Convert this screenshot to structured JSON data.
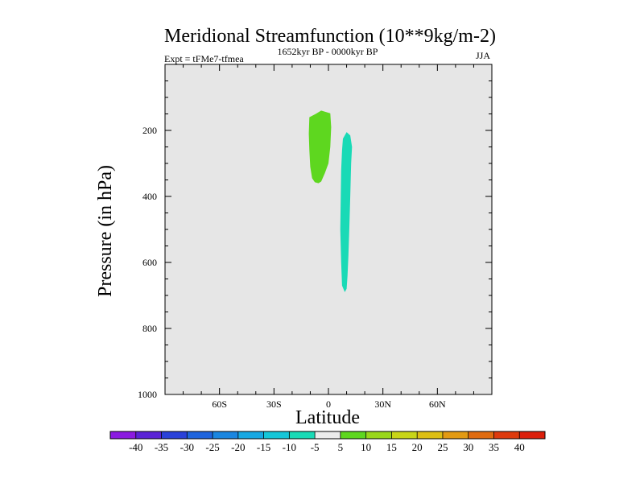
{
  "chart_data": {
    "type": "contour",
    "title": "Meridional Streamfunction (10**9kg/m-2)",
    "left_label": "Expt = tFMe7-tfmea",
    "center_label": "1652kyr BP - 0000kyr BP",
    "right_label": "JJA",
    "xlabel": "Latitude",
    "ylabel": "Pressure (in hPa)",
    "xlim": [
      -90,
      90
    ],
    "ylim": [
      1000,
      0
    ],
    "x_ticks": [
      {
        "value": -60,
        "label": "60S"
      },
      {
        "value": -30,
        "label": "30S"
      },
      {
        "value": 0,
        "label": "0"
      },
      {
        "value": 30,
        "label": "30N"
      },
      {
        "value": 60,
        "label": "60N"
      }
    ],
    "x_minor_step": 10,
    "y_ticks": [
      {
        "value": 200,
        "label": "200"
      },
      {
        "value": 400,
        "label": "400"
      },
      {
        "value": 600,
        "label": "600"
      },
      {
        "value": 800,
        "label": "800"
      },
      {
        "value": 1000,
        "label": "1000"
      }
    ],
    "y_minor_step": 50,
    "background_color": "#e6e6e6",
    "regions": [
      {
        "name": "positive-cell-5-to-10",
        "range": "5 to 10",
        "color": "#5ed71f",
        "outline": [
          [
            -10.5,
            160
          ],
          [
            -7,
            150
          ],
          [
            -4,
            140
          ],
          [
            -1,
            145
          ],
          [
            1,
            148
          ],
          [
            1.5,
            190
          ],
          [
            1,
            250
          ],
          [
            0,
            300
          ],
          [
            -2,
            330
          ],
          [
            -4,
            355
          ],
          [
            -5.5,
            360
          ],
          [
            -7.5,
            357
          ],
          [
            -9,
            345
          ],
          [
            -10,
            310
          ],
          [
            -10.5,
            260
          ],
          [
            -10.8,
            210
          ]
        ]
      },
      {
        "name": "negative-cell-minus5-to-minus10",
        "range": "-10 to -5",
        "color": "#19dab6",
        "outline": [
          [
            8,
            225
          ],
          [
            10,
            205
          ],
          [
            12,
            215
          ],
          [
            13,
            250
          ],
          [
            12.5,
            300
          ],
          [
            12,
            400
          ],
          [
            11.5,
            500
          ],
          [
            11,
            580
          ],
          [
            10.5,
            640
          ],
          [
            10,
            680
          ],
          [
            9,
            690
          ],
          [
            7.5,
            670
          ],
          [
            7,
            600
          ],
          [
            6.5,
            500
          ],
          [
            6.8,
            400
          ],
          [
            7,
            320
          ],
          [
            7.5,
            260
          ]
        ]
      }
    ],
    "colorbar": {
      "labels": [
        "-40",
        "-35",
        "-30",
        "-25",
        "-20",
        "-15",
        "-10",
        "-5",
        "5",
        "10",
        "15",
        "20",
        "25",
        "30",
        "35",
        "40"
      ],
      "colors": [
        "#8b1be0",
        "#5a23d6",
        "#2a41d9",
        "#1f64dd",
        "#1a86e0",
        "#17a8e2",
        "#15c6d8",
        "#19dab6",
        "#ececec",
        "#5ed71f",
        "#99d71a",
        "#c8d517",
        "#ddbf14",
        "#e29a12",
        "#e06b0f",
        "#de3a0d",
        "#dc1f0b"
      ]
    }
  }
}
